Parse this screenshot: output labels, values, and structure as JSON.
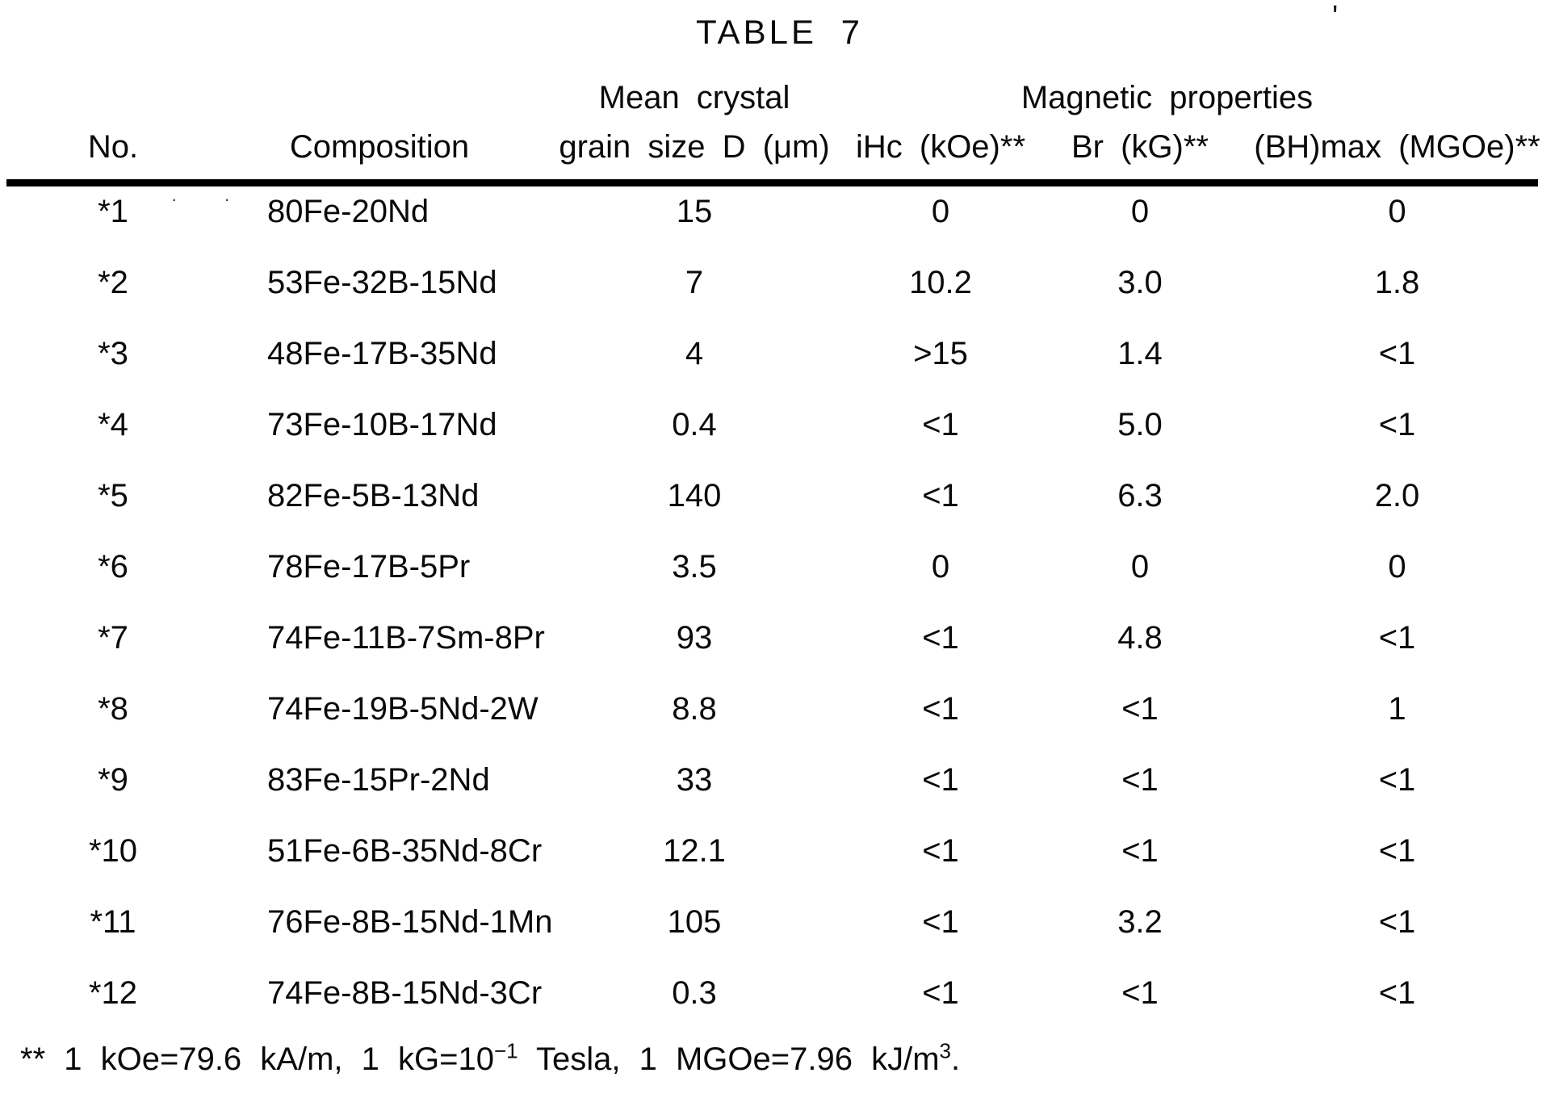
{
  "title": "TABLE 7",
  "artifacts": {
    "tick": "'",
    "dots": "· ·"
  },
  "table": {
    "group_header": "Magnetic properties",
    "col_headers": {
      "no": "No.",
      "composition": "Composition",
      "grain_line1": "Mean crystal",
      "grain_line2": "grain size D (μm)",
      "ihc": "iHc (kOe)**",
      "br": "Br (kG)**",
      "bhmax": "(BH)max (MGOe)**"
    },
    "rows": [
      {
        "no": "*1",
        "composition": "80Fe-20Nd",
        "grain": "15",
        "ihc": "0",
        "br": "0",
        "bhmax": "0"
      },
      {
        "no": "*2",
        "composition": "53Fe-32B-15Nd",
        "grain": "7",
        "ihc": "10.2",
        "br": "3.0",
        "bhmax": "1.8"
      },
      {
        "no": "*3",
        "composition": "48Fe-17B-35Nd",
        "grain": "4",
        "ihc": ">15",
        "br": "1.4",
        "bhmax": "<1"
      },
      {
        "no": "*4",
        "composition": "73Fe-10B-17Nd",
        "grain": "0.4",
        "ihc": "<1",
        "br": "5.0",
        "bhmax": "<1"
      },
      {
        "no": "*5",
        "composition": "82Fe-5B-13Nd",
        "grain": "140",
        "ihc": "<1",
        "br": "6.3",
        "bhmax": "2.0"
      },
      {
        "no": "*6",
        "composition": "78Fe-17B-5Pr",
        "grain": "3.5",
        "ihc": "0",
        "br": "0",
        "bhmax": "0"
      },
      {
        "no": "*7",
        "composition": "74Fe-11B-7Sm-8Pr",
        "grain": "93",
        "ihc": "<1",
        "br": "4.8",
        "bhmax": "<1"
      },
      {
        "no": "*8",
        "composition": "74Fe-19B-5Nd-2W",
        "grain": "8.8",
        "ihc": "<1",
        "br": "<1",
        "bhmax": "1"
      },
      {
        "no": "*9",
        "composition": "83Fe-15Pr-2Nd",
        "grain": "33",
        "ihc": "<1",
        "br": "<1",
        "bhmax": "<1"
      },
      {
        "no": "*10",
        "composition": "51Fe-6B-35Nd-8Cr",
        "grain": "12.1",
        "ihc": "<1",
        "br": "<1",
        "bhmax": "<1"
      },
      {
        "no": "*11",
        "composition": "76Fe-8B-15Nd-1Mn",
        "grain": "105",
        "ihc": "<1",
        "br": "3.2",
        "bhmax": "<1"
      },
      {
        "no": "*12",
        "composition": "74Fe-8B-15Nd-3Cr",
        "grain": "0.3",
        "ihc": "<1",
        "br": "<1",
        "bhmax": "<1"
      }
    ]
  },
  "footnote": {
    "parts": [
      "** 1 kOe=79.6 kA/m, 1 kG=10",
      "−1",
      " Tesla, 1 MGOe=7.96 kJ/m",
      "3",
      "."
    ]
  }
}
